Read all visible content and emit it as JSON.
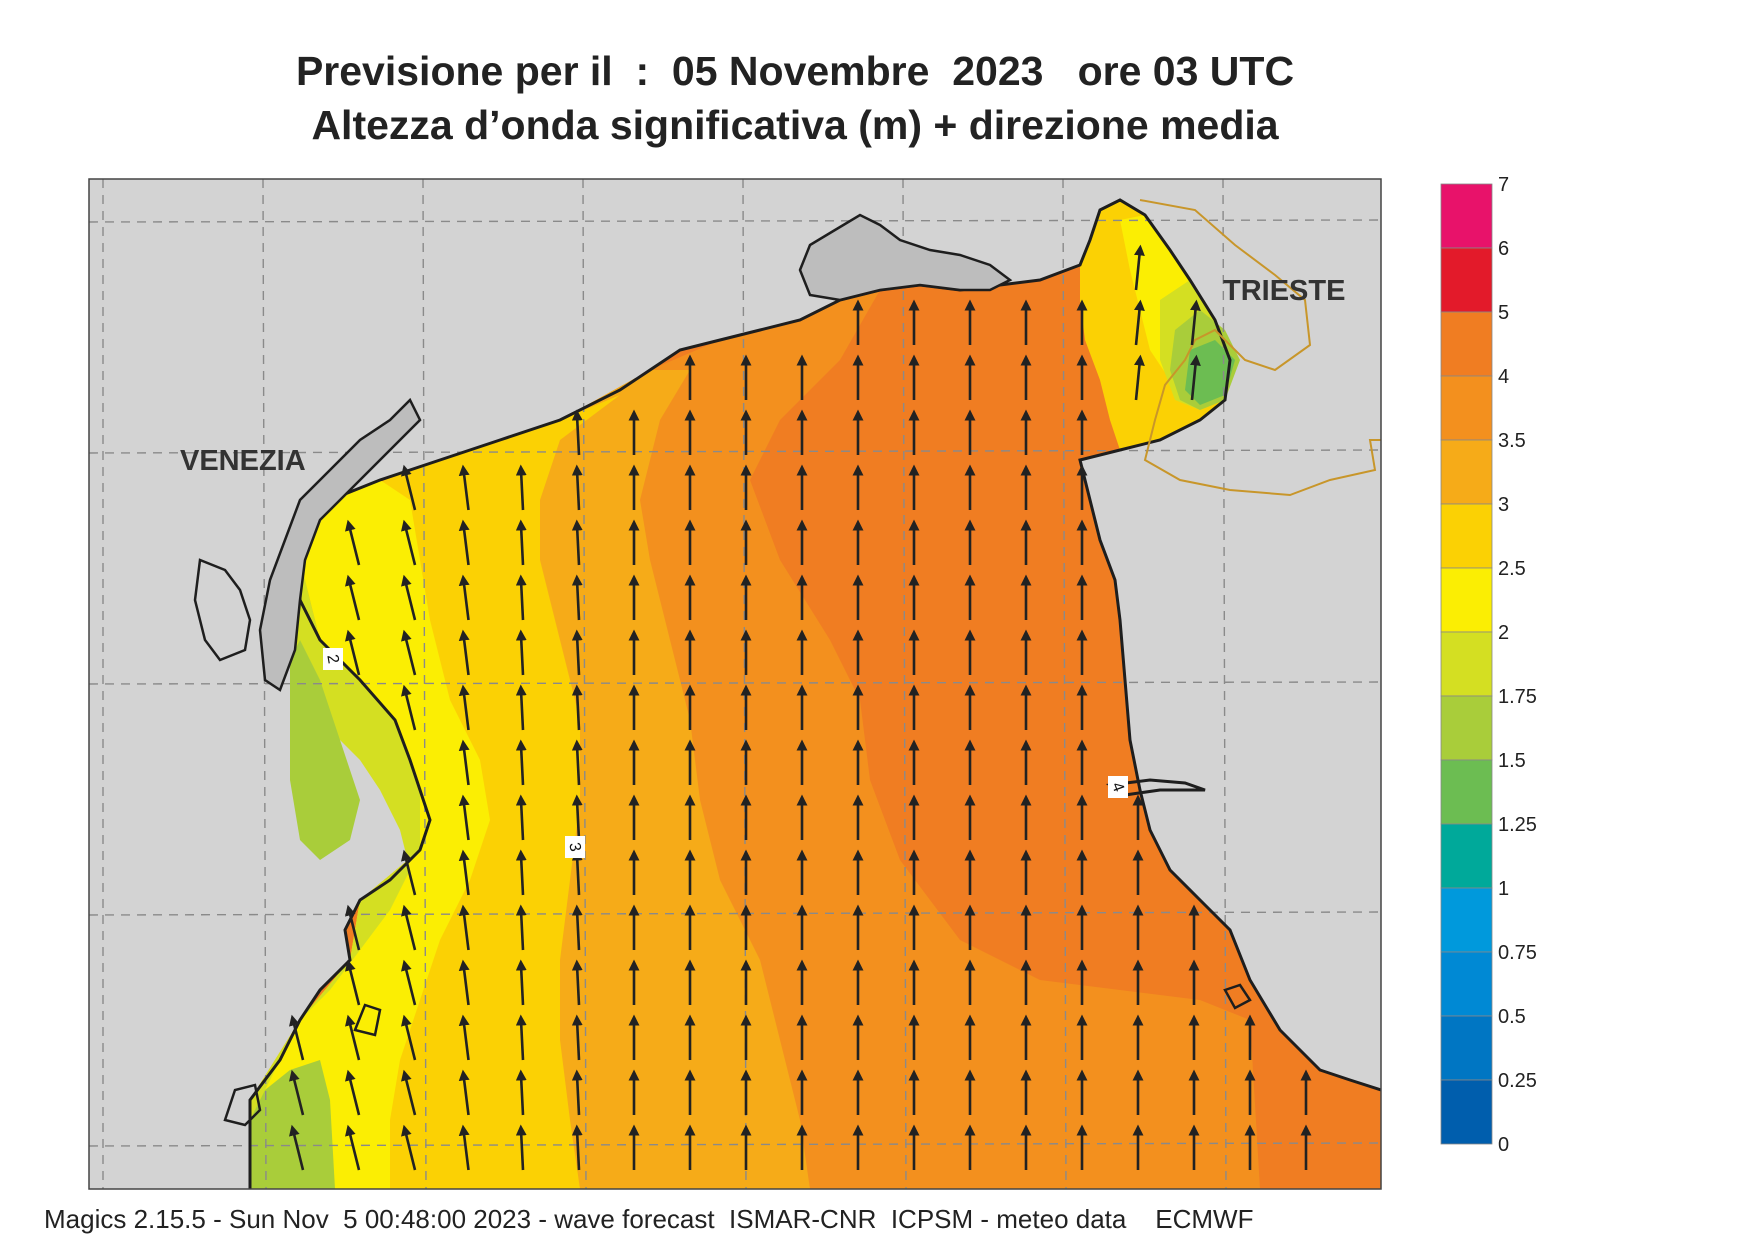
{
  "title": {
    "line1": "Previsione per il  :  05 Novembre  2023   ore 03 UTC",
    "line2": "Altezza d’onda significativa (m) + direzione media"
  },
  "cities": {
    "venezia": "VENEZIA",
    "trieste": "TRIESTE"
  },
  "contour_labels": {
    "c2": "2",
    "c3": "3",
    "c4": "4"
  },
  "legend": {
    "labels": [
      "7",
      "6",
      "5",
      "4",
      "3.5",
      "3",
      "2.5",
      "2",
      "1.75",
      "1.5",
      "1.25",
      "1",
      "0.75",
      "0.5",
      "0.25",
      "0"
    ],
    "bins": [
      {
        "range": "6-7",
        "color": "#e8126a"
      },
      {
        "range": "5-6",
        "color": "#e31a2a"
      },
      {
        "range": "4-5",
        "color": "#f07d22"
      },
      {
        "range": "3.5-4",
        "color": "#f3901e"
      },
      {
        "range": "3-3.5",
        "color": "#f6ab18"
      },
      {
        "range": "2.5-3",
        "color": "#fbd104"
      },
      {
        "range": "2-2.5",
        "color": "#fbee03"
      },
      {
        "range": "1.75-2",
        "color": "#d4df22"
      },
      {
        "range": "1.5-1.75",
        "color": "#a9cd3a"
      },
      {
        "range": "1.25-1.5",
        "color": "#6cbd52"
      },
      {
        "range": "1-1.25",
        "color": "#00a99a"
      },
      {
        "range": "0.75-1",
        "color": "#0099dc"
      },
      {
        "range": "0.5-0.75",
        "color": "#0089d4"
      },
      {
        "range": "0.25-0.5",
        "color": "#0076c3"
      },
      {
        "range": "0-0.25",
        "color": "#005ead"
      }
    ]
  },
  "wave_direction": "north (arrows point northward, slightly north-northwest near Venice coast)",
  "footer": "Magics 2.15.5 - Sun Nov  5 00:48:00 2023 - wave forecast  ISMAR-CNR  ICPSM - meteo data    ECMWF"
}
